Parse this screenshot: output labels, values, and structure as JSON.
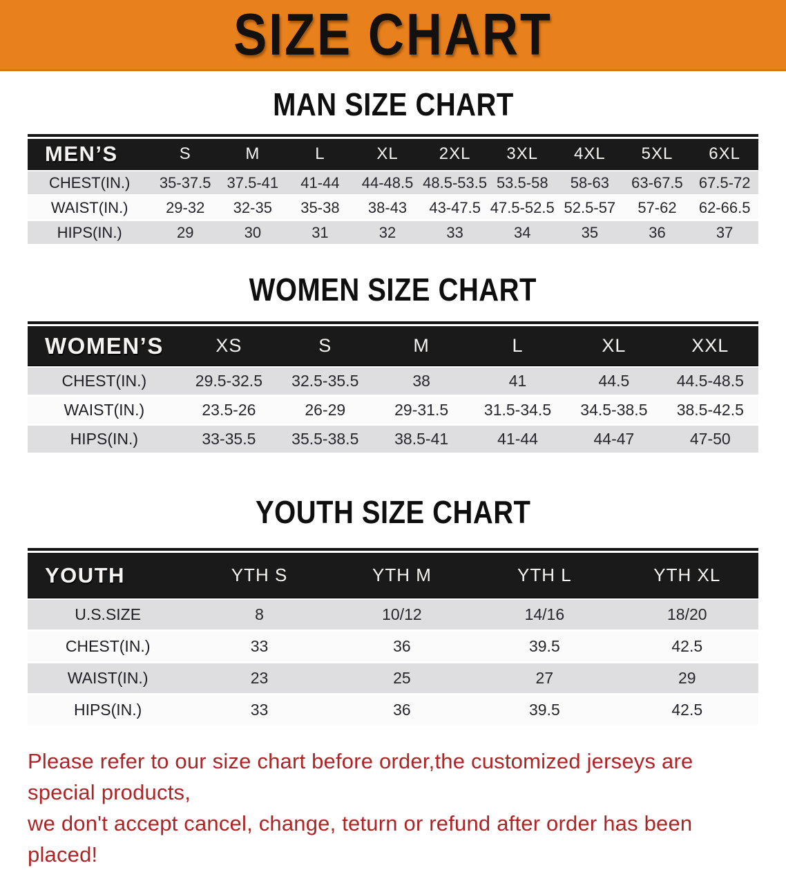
{
  "banner": {
    "title": "SIZE CHART"
  },
  "colors": {
    "banner_orange": "#E8811C",
    "header_black": "#1B1A1A",
    "row_gray": "#DEDEE0",
    "row_white": "#FBFBFB",
    "disclaimer_red": "#AE2425"
  },
  "sections": {
    "men": {
      "title": "MAN SIZE CHART",
      "table": {
        "header": [
          "MEN’S",
          "S",
          "M",
          "L",
          "XL",
          "2XL",
          "3XL",
          "4XL",
          "5XL",
          "6XL"
        ],
        "rows": [
          [
            "CHEST(IN.)",
            "35-37.5",
            "37.5-41",
            "41-44",
            "44-48.5",
            "48.5-53.5",
            "53.5-58",
            "58-63",
            "63-67.5",
            "67.5-72"
          ],
          [
            "WAIST(IN.)",
            "29-32",
            "32-35",
            "35-38",
            "38-43",
            "43-47.5",
            "47.5-52.5",
            "52.5-57",
            "57-62",
            "62-66.5"
          ],
          [
            "HIPS(IN.)",
            "29",
            "30",
            "31",
            "32",
            "33",
            "34",
            "35",
            "36",
            "37"
          ]
        ]
      }
    },
    "women": {
      "title": "WOMEN SIZE CHART",
      "table": {
        "header": [
          "WOMEN’S",
          "XS",
          "S",
          "M",
          "L",
          "XL",
          "XXL"
        ],
        "rows": [
          [
            "CHEST(IN.)",
            "29.5-32.5",
            "32.5-35.5",
            "38",
            "41",
            "44.5",
            "44.5-48.5"
          ],
          [
            "WAIST(IN.)",
            "23.5-26",
            "26-29",
            "29-31.5",
            "31.5-34.5",
            "34.5-38.5",
            "38.5-42.5"
          ],
          [
            "HIPS(IN.)",
            "33-35.5",
            "35.5-38.5",
            "38.5-41",
            "41-44",
            "44-47",
            "47-50"
          ]
        ]
      }
    },
    "youth": {
      "title": "YOUTH SIZE CHART",
      "table": {
        "header": [
          "YOUTH",
          "YTH S",
          "YTH M",
          "YTH L",
          "YTH XL"
        ],
        "rows": [
          [
            "U.S.SIZE",
            "8",
            "10/12",
            "14/16",
            "18/20"
          ],
          [
            "CHEST(IN.)",
            "33",
            "36",
            "39.5",
            "42.5"
          ],
          [
            "WAIST(IN.)",
            "23",
            "25",
            "27",
            "29"
          ],
          [
            "HIPS(IN.)",
            "33",
            "36",
            "39.5",
            "42.5"
          ]
        ]
      }
    }
  },
  "disclaimer": {
    "line1": "Please refer to our size chart before order,the customized jerseys are special products,",
    "line2": "we don't accept cancel, change, teturn or refund after order has been placed!"
  }
}
